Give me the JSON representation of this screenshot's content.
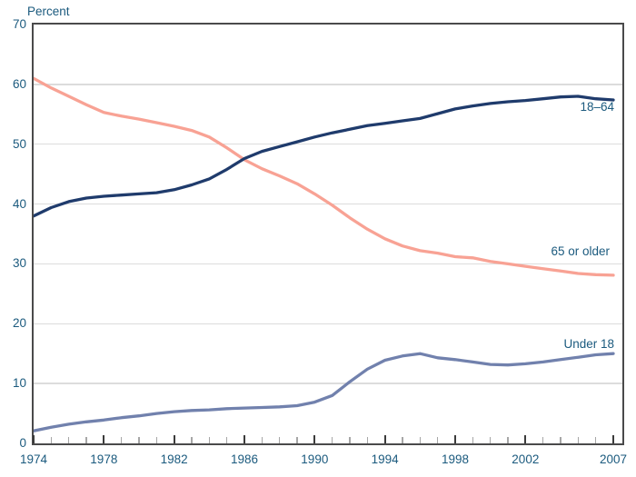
{
  "axis_title": "Percent",
  "annotations": {
    "adults": "18–64",
    "older": "65 or older",
    "children": "Under 18"
  },
  "colors": {
    "text": "#1b5a7e",
    "plot_border": "#4a4a4b",
    "gridline": "#dcdcdc",
    "major_tick": "#3b3b3b",
    "minor_tick": "#a6a6a6",
    "series_18_64": "#1f3b6c",
    "series_65_or_older": "#f8a294",
    "series_under_18": "#7181ad"
  },
  "chart_data": {
    "type": "line",
    "title": "",
    "xlabel": "",
    "ylabel": "Percent",
    "ylim": [
      0,
      70
    ],
    "xlim": [
      1974,
      2007.5
    ],
    "grid": "horizontal-only",
    "legend_position": "inline-right-of-lines",
    "y_ticks": [
      0,
      10,
      20,
      30,
      40,
      50,
      60,
      70
    ],
    "x_major_ticks": [
      1974,
      1978,
      1982,
      1986,
      1990,
      1994,
      1998,
      2002,
      2007
    ],
    "x_minor_tick_interval": 1,
    "x": [
      1974,
      1975,
      1976,
      1977,
      1978,
      1979,
      1980,
      1981,
      1982,
      1983,
      1984,
      1985,
      1986,
      1987,
      1988,
      1989,
      1990,
      1991,
      1992,
      1993,
      1994,
      1995,
      1996,
      1997,
      1998,
      1999,
      2000,
      2001,
      2002,
      2003,
      2004,
      2005,
      2006,
      2007
    ],
    "series": [
      {
        "name": "18–64",
        "color": "#1f3b6c",
        "values": [
          38.0,
          39.4,
          40.4,
          41.0,
          41.3,
          41.5,
          41.7,
          41.9,
          42.4,
          43.2,
          44.2,
          45.8,
          47.6,
          48.8,
          49.6,
          50.4,
          51.2,
          51.9,
          52.5,
          53.1,
          53.5,
          53.9,
          54.3,
          55.1,
          55.9,
          56.4,
          56.8,
          57.1,
          57.3,
          57.6,
          57.9,
          58.0,
          57.6,
          57.4
        ]
      },
      {
        "name": "65 or older",
        "color": "#f8a294",
        "values": [
          61.0,
          59.4,
          58.0,
          56.6,
          55.3,
          54.7,
          54.2,
          53.6,
          53.0,
          52.3,
          51.2,
          49.4,
          47.4,
          45.9,
          44.7,
          43.4,
          41.7,
          39.8,
          37.7,
          35.8,
          34.2,
          33.0,
          32.2,
          31.8,
          31.2,
          31.0,
          30.4,
          30.0,
          29.6,
          29.2,
          28.8,
          28.4,
          28.2,
          28.1
        ]
      },
      {
        "name": "Under 18",
        "color": "#7181ad",
        "values": [
          2.1,
          2.7,
          3.2,
          3.6,
          3.9,
          4.3,
          4.6,
          5.0,
          5.3,
          5.5,
          5.6,
          5.8,
          5.9,
          6.0,
          6.1,
          6.3,
          6.9,
          8.0,
          10.3,
          12.4,
          13.9,
          14.6,
          15.0,
          14.3,
          14.0,
          13.6,
          13.2,
          13.1,
          13.3,
          13.6,
          14.0,
          14.4,
          14.8,
          15.0
        ]
      }
    ]
  }
}
